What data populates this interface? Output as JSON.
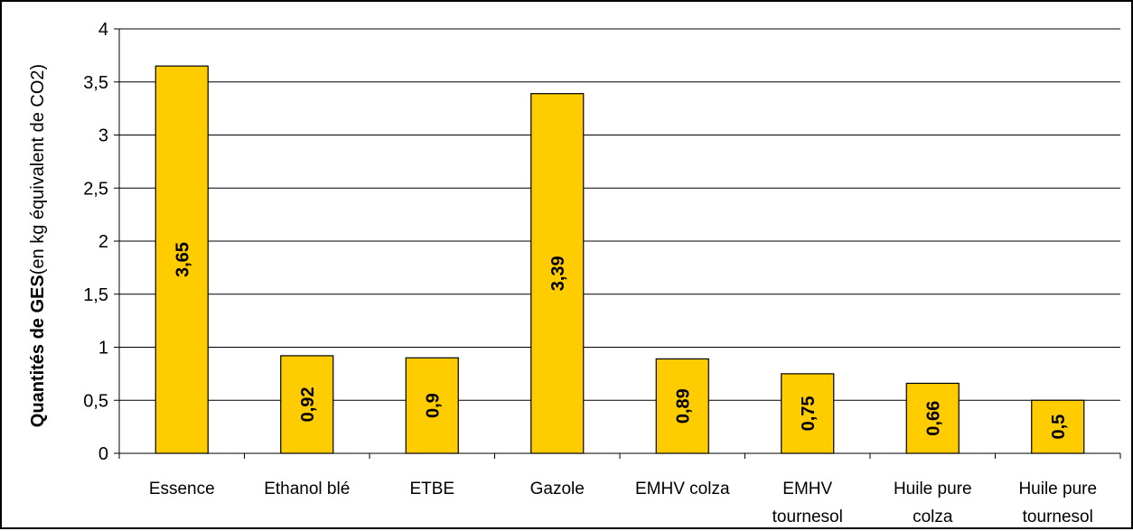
{
  "chart_data": {
    "type": "bar",
    "categories": [
      [
        "Essence"
      ],
      [
        "Ethanol blé"
      ],
      [
        "ETBE"
      ],
      [
        "Gazole"
      ],
      [
        "EMHV colza"
      ],
      [
        "EMHV",
        "tournesol"
      ],
      [
        "Huile pure",
        "colza"
      ],
      [
        "Huile pure",
        "tournesol"
      ]
    ],
    "values": [
      3.65,
      0.92,
      0.9,
      3.39,
      0.89,
      0.75,
      0.66,
      0.5
    ],
    "data_labels": [
      "3,65",
      "0,92",
      "0,9",
      "3,39",
      "0,89",
      "0,75",
      "0,66",
      "0,5"
    ],
    "ylim": [
      0,
      4
    ],
    "yticks": [
      0,
      0.5,
      1,
      1.5,
      2,
      2.5,
      3,
      3.5,
      4
    ],
    "ytick_labels": [
      "0",
      "0,5",
      "1",
      "1,5",
      "2",
      "2,5",
      "3",
      "3,5",
      "4"
    ],
    "ylabel_bold": "Quantités de GES",
    "ylabel_rest": "(en kg équivalent de CO2)",
    "xlabel": "",
    "title": "",
    "grid": "horizontal",
    "legend": "none",
    "colors": {
      "bar_fill": "#FFCC00",
      "bar_stroke": "#000000",
      "grid": "#000000",
      "axis": "#000000"
    }
  }
}
